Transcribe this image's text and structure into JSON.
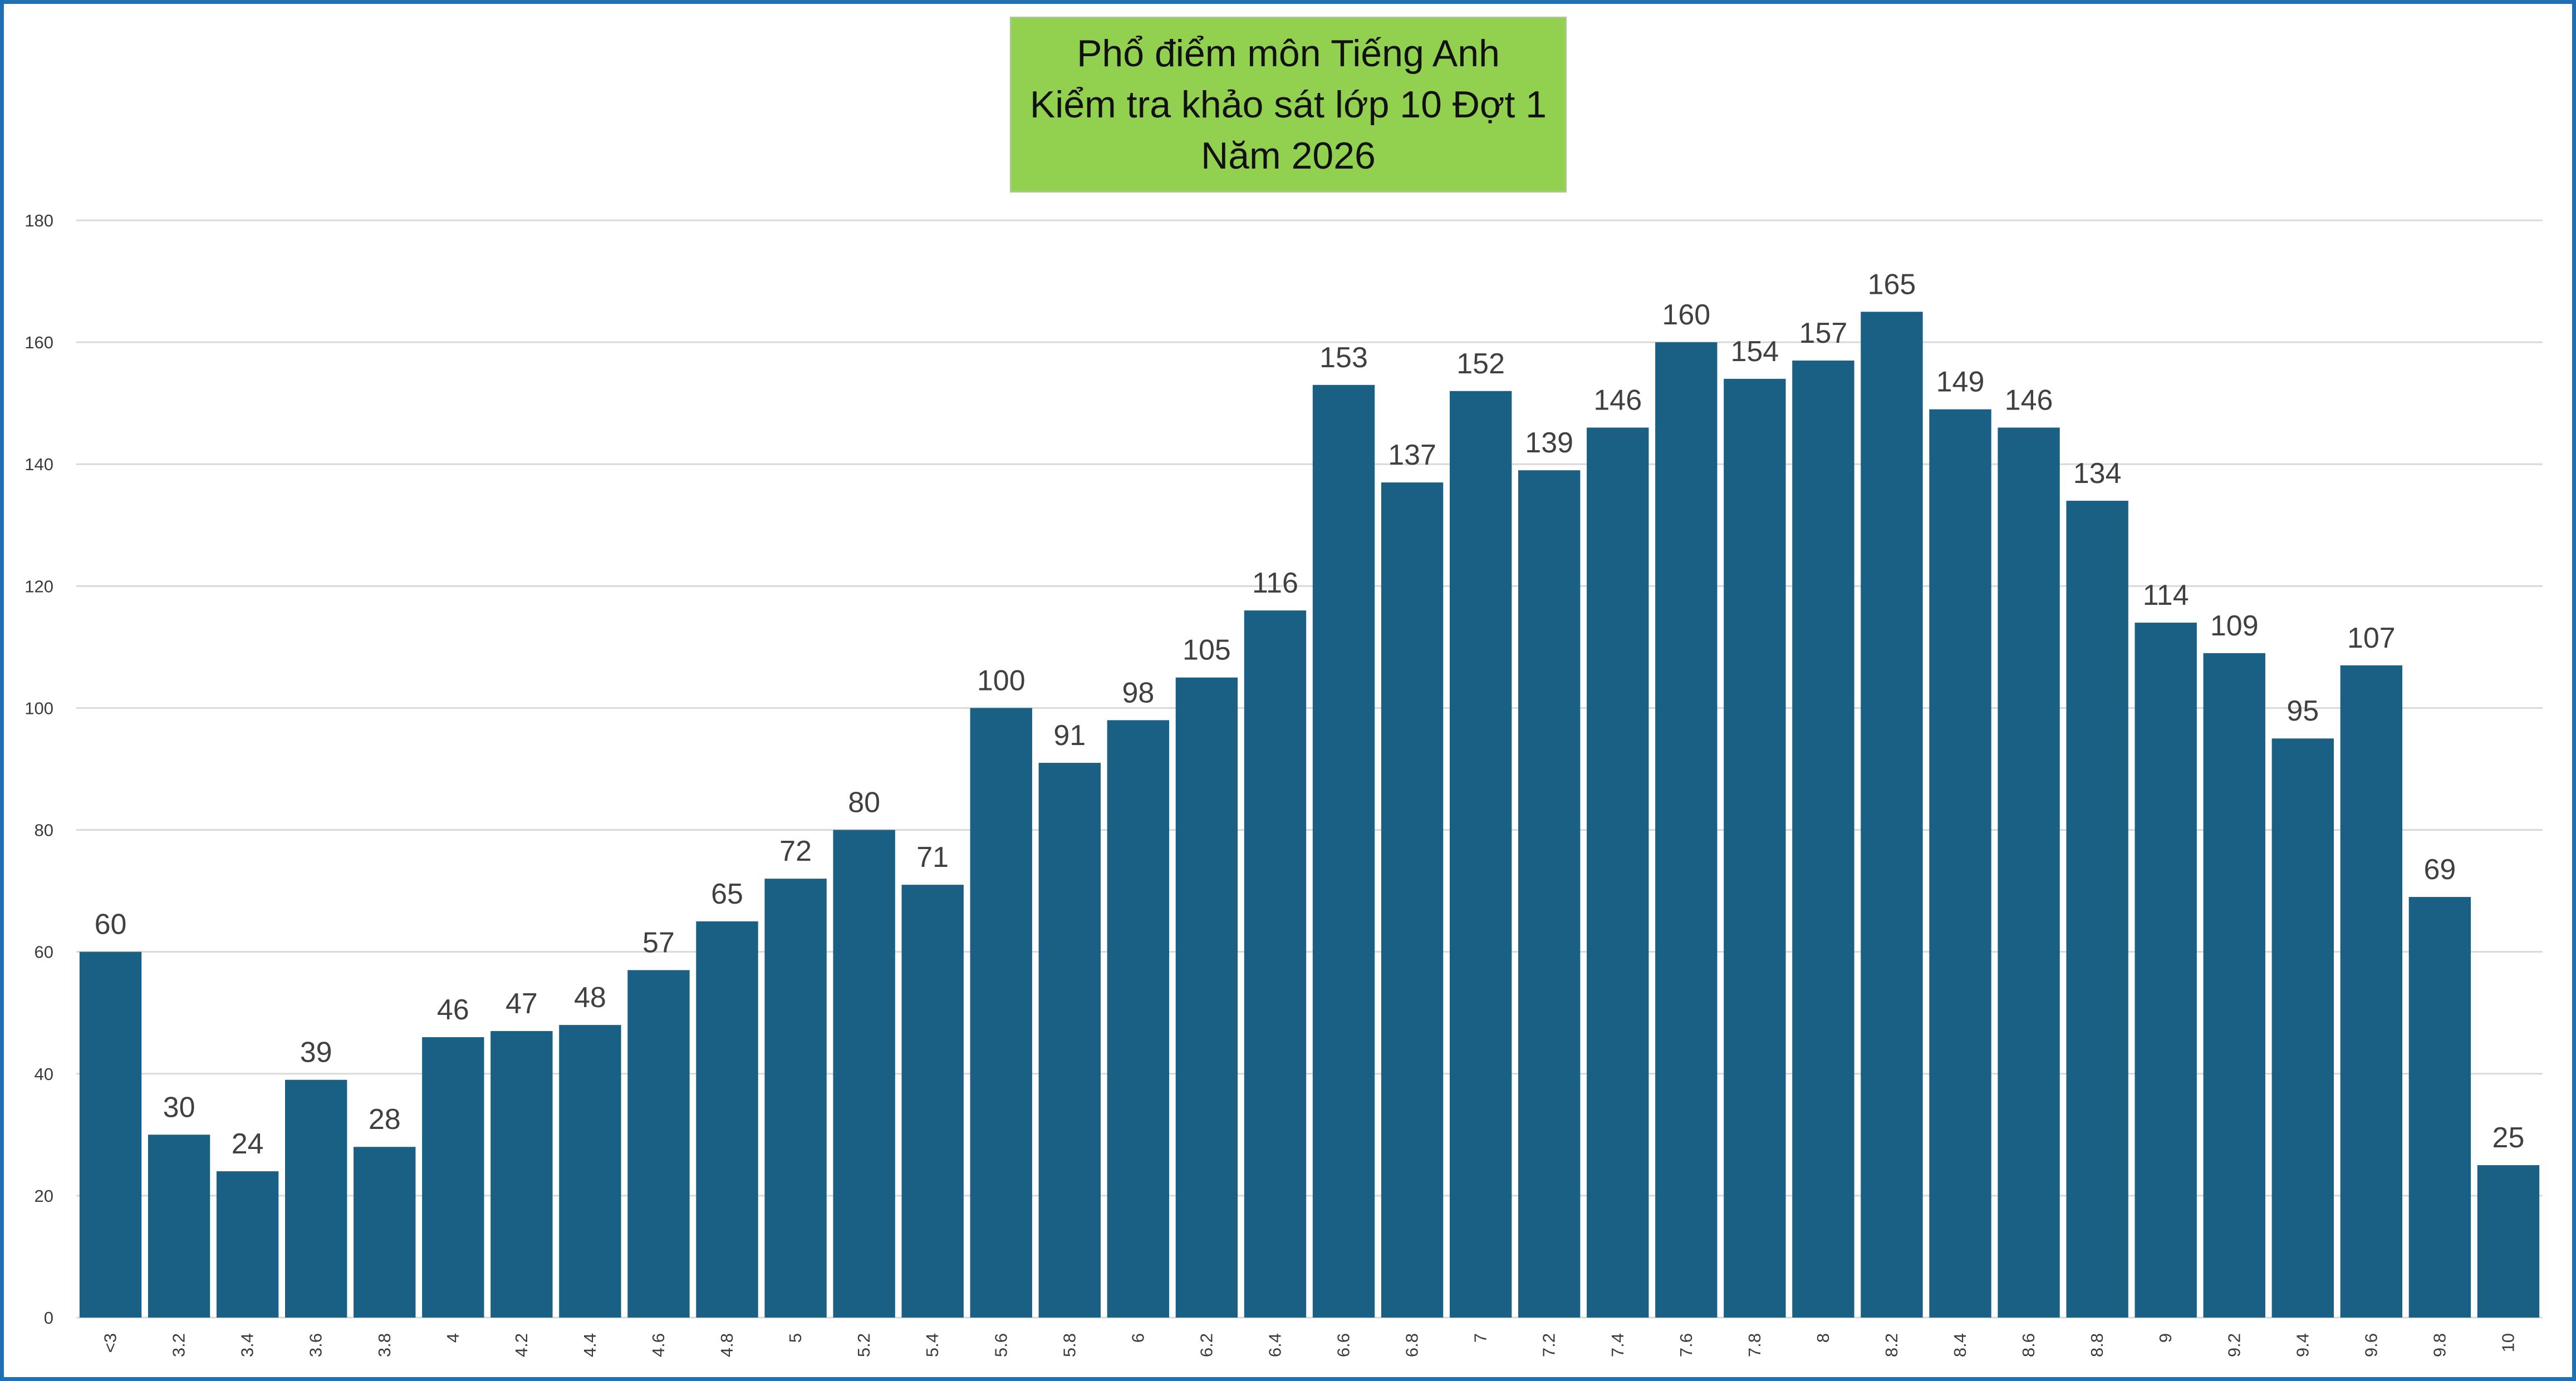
{
  "chart_data": {
    "type": "bar",
    "title_lines": [
      "Phổ điểm môn Tiếng Anh",
      "Kiểm tra khảo sát lớp 10 Đợt 1",
      "Năm 2026"
    ],
    "categories": [
      "<3",
      "3.2",
      "3.4",
      "3.6",
      "3.8",
      "4",
      "4.2",
      "4.4",
      "4.6",
      "4.8",
      "5",
      "5.2",
      "5.4",
      "5.6",
      "5.8",
      "6",
      "6.2",
      "6.4",
      "6.6",
      "6.8",
      "7",
      "7.2",
      "7.4",
      "7.6",
      "7.8",
      "8",
      "8.2",
      "8.4",
      "8.6",
      "8.8",
      "9",
      "9.2",
      "9.4",
      "9.6",
      "9.8",
      "10"
    ],
    "values": [
      60,
      30,
      24,
      39,
      28,
      46,
      47,
      48,
      57,
      65,
      72,
      80,
      71,
      100,
      91,
      98,
      105,
      116,
      153,
      137,
      152,
      139,
      146,
      160,
      154,
      157,
      165,
      149,
      146,
      134,
      114,
      109,
      95,
      107,
      69,
      25
    ],
    "y_ticks": [
      "0",
      "20",
      "40",
      "60",
      "80",
      "100",
      "120",
      "140",
      "160",
      "180"
    ],
    "ylim": [
      0,
      180
    ],
    "xlabel": "",
    "ylabel": "",
    "grid": true,
    "bar_color": "#1a5f84",
    "grid_color": "#d9d9d9",
    "background_color": "#ffffff",
    "border_color": "#1f6fb5",
    "title_background": "#92d050"
  }
}
